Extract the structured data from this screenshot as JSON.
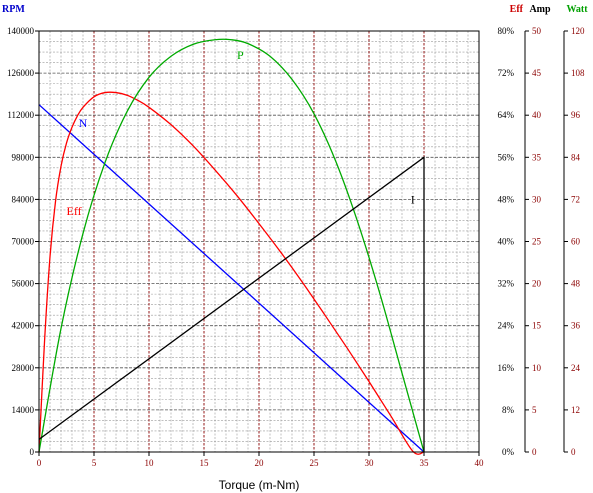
{
  "chart_data": {
    "type": "line",
    "x_axis": {
      "label": "Torque (m-Nm)",
      "range": [
        0,
        40
      ],
      "ticks": [
        "0",
        "5",
        "10",
        "15",
        "20",
        "25",
        "30",
        "35",
        "40"
      ]
    },
    "y_axes": [
      {
        "id": "rpm",
        "title": "RPM",
        "range": [
          0,
          140000
        ],
        "ticks": [
          "0",
          "14000",
          "28000",
          "42000",
          "56000",
          "70000",
          "84000",
          "98000",
          "112000",
          "126000",
          "140000"
        ],
        "color": "#0000cc",
        "tick_color": "#000000",
        "side": "left"
      },
      {
        "id": "eff",
        "title": "Eff",
        "range": [
          0,
          80
        ],
        "unit": "%",
        "ticks": [
          "0%",
          "8%",
          "16%",
          "24%",
          "32%",
          "40%",
          "48%",
          "56%",
          "64%",
          "72%",
          "80%"
        ],
        "color": "#cc0000",
        "tick_color": "#000000",
        "side": "right"
      },
      {
        "id": "amp",
        "title": "Amp",
        "range": [
          0,
          50
        ],
        "ticks": [
          "0",
          "5",
          "10",
          "15",
          "20",
          "25",
          "30",
          "35",
          "40",
          "45",
          "50"
        ],
        "color": "#000000",
        "tick_color": "#8b0000",
        "side": "right"
      },
      {
        "id": "watt",
        "title": "Watt",
        "range": [
          0,
          120
        ],
        "ticks": [
          "0",
          "12",
          "24",
          "36",
          "48",
          "60",
          "72",
          "84",
          "96",
          "108",
          "120"
        ],
        "color": "#00a000",
        "tick_color": "#8b0000",
        "side": "right"
      }
    ],
    "series": [
      {
        "label": "N",
        "axis": "rpm",
        "color": "#0000ff",
        "x": [
          0,
          35
        ],
        "y": [
          115500,
          0
        ],
        "label_at": [
          3.6,
          108000
        ]
      },
      {
        "label": "Eff",
        "axis": "eff",
        "color": "#ff0000",
        "x": [
          0,
          0.5,
          1,
          1.5,
          2,
          2.5,
          3,
          3.5,
          4,
          5,
          6,
          7,
          8,
          9,
          10,
          12,
          14,
          16,
          18,
          20,
          22,
          24,
          26,
          28,
          30,
          32,
          34,
          35
        ],
        "y": [
          0,
          20.9,
          37.1,
          47.6,
          54.3,
          58.7,
          61.7,
          63.9,
          65.5,
          67.5,
          68.3,
          68.3,
          67.8,
          66.8,
          65.5,
          62.2,
          58.2,
          53.6,
          48.7,
          43.4,
          37.9,
          32.1,
          26.0,
          19.8,
          13.4,
          6.8,
          0.1,
          0
        ],
        "label_at": [
          2.5,
          45
        ]
      },
      {
        "label": "P",
        "axis": "watt",
        "color": "#00aa00",
        "x": [
          0,
          2,
          4,
          6,
          8,
          10,
          12,
          14,
          16,
          17.5,
          19,
          21,
          23,
          25,
          27,
          29,
          31,
          33,
          35
        ],
        "y": [
          0,
          35.2,
          62.3,
          82.5,
          97.0,
          106.8,
          112.8,
          116.2,
          117.5,
          117.5,
          116.4,
          112.8,
          106.2,
          96.4,
          82.7,
          65.3,
          45.0,
          22.5,
          0
        ],
        "label_at": [
          18,
          112
        ]
      },
      {
        "label": "I",
        "axis": "amp",
        "color": "#000000",
        "x": [
          0,
          35,
          35
        ],
        "y": [
          1.5,
          35,
          0
        ],
        "label_at": [
          33.8,
          29.5
        ]
      }
    ],
    "grid": "on"
  }
}
